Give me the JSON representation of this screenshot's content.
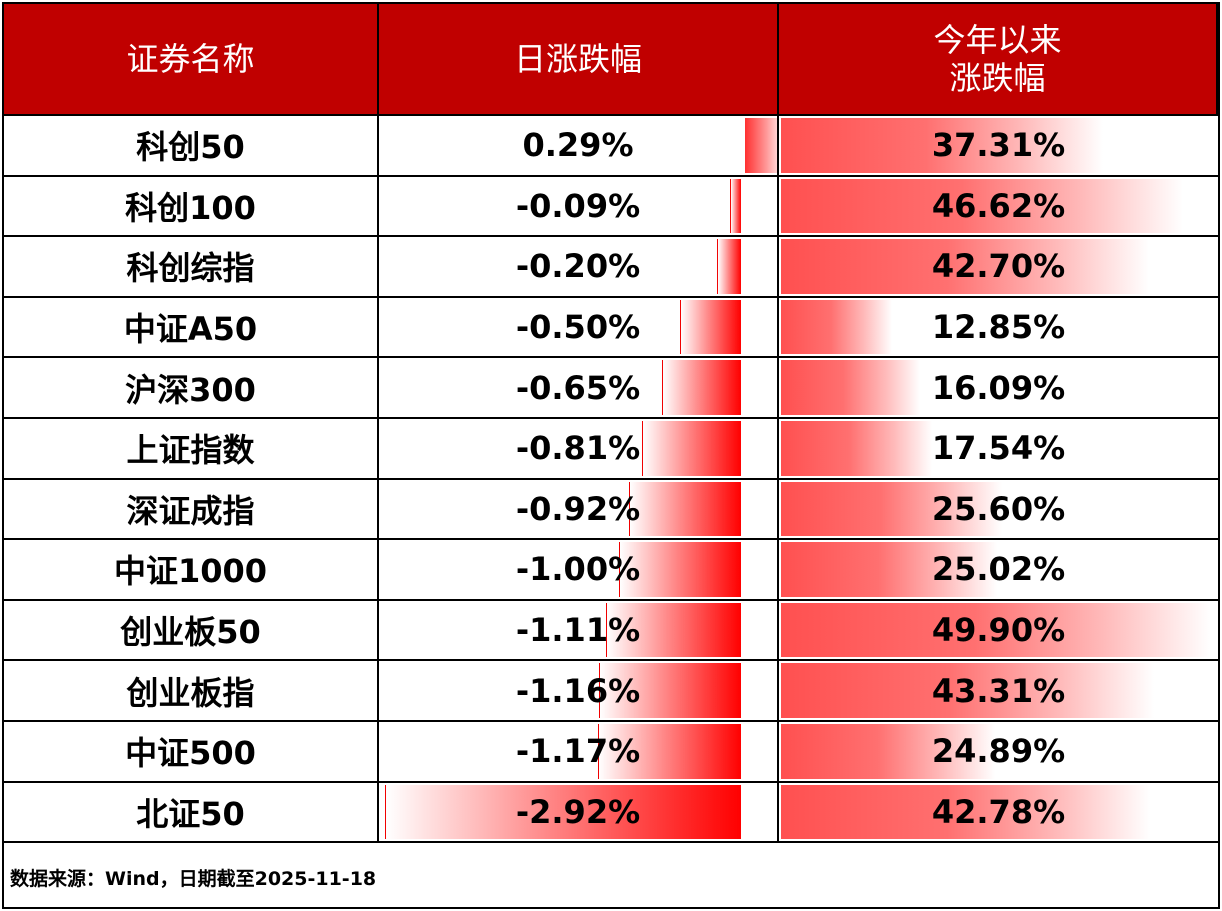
{
  "header": {
    "col_name": "证券名称",
    "col_daily": "日涨跌幅",
    "col_ytd_line1": "今年以来",
    "col_ytd_line2": "涨跌幅"
  },
  "colors": {
    "header_bg": "#c00000",
    "bar_red": "#ff0000"
  },
  "rows": [
    {
      "name": "科创50",
      "daily": "0.29%",
      "daily_value": 0.29,
      "ytd": "37.31%",
      "ytd_value": 37.31
    },
    {
      "name": "科创100",
      "daily": "-0.09%",
      "daily_value": -0.09,
      "ytd": "46.62%",
      "ytd_value": 46.62
    },
    {
      "name": "科创综指",
      "daily": "-0.20%",
      "daily_value": -0.2,
      "ytd": "42.70%",
      "ytd_value": 42.7
    },
    {
      "name": "中证A50",
      "daily": "-0.50%",
      "daily_value": -0.5,
      "ytd": "12.85%",
      "ytd_value": 12.85
    },
    {
      "name": "沪深300",
      "daily": "-0.65%",
      "daily_value": -0.65,
      "ytd": "16.09%",
      "ytd_value": 16.09
    },
    {
      "name": "上证指数",
      "daily": "-0.81%",
      "daily_value": -0.81,
      "ytd": "17.54%",
      "ytd_value": 17.54
    },
    {
      "name": "深证成指",
      "daily": "-0.92%",
      "daily_value": -0.92,
      "ytd": "25.60%",
      "ytd_value": 25.6
    },
    {
      "name": "中证1000",
      "daily": "-1.00%",
      "daily_value": -1.0,
      "ytd": "25.02%",
      "ytd_value": 25.02
    },
    {
      "name": "创业板50",
      "daily": "-1.11%",
      "daily_value": -1.11,
      "ytd": "49.90%",
      "ytd_value": 49.9
    },
    {
      "name": "创业板指",
      "daily": "-1.16%",
      "daily_value": -1.16,
      "ytd": "43.31%",
      "ytd_value": 43.31
    },
    {
      "name": "中证500",
      "daily": "-1.17%",
      "daily_value": -1.17,
      "ytd": "24.89%",
      "ytd_value": 24.89
    },
    {
      "name": "北证50",
      "daily": "-2.92%",
      "daily_value": -2.92,
      "ytd": "42.78%",
      "ytd_value": 42.78
    }
  ],
  "footer": {
    "source": "数据来源：Wind，日期截至2025-11-18"
  }
}
